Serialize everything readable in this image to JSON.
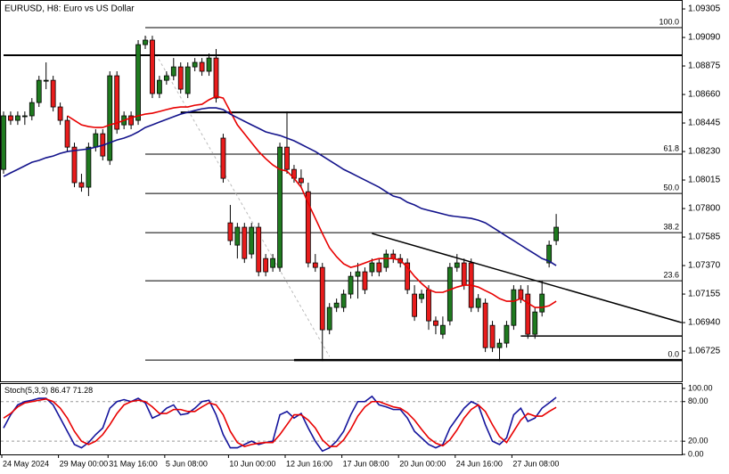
{
  "chart_data": [
    {
      "type": "candlestick",
      "title": "EURUSD, H8:  Euro vs US Dollar",
      "categories": [
        "24 May 2024",
        null,
        null,
        null,
        null,
        null,
        null,
        null,
        "29 May 00:00",
        null,
        null,
        null,
        null,
        null,
        null,
        "31 May 16:00",
        null,
        null,
        null,
        null,
        null,
        null,
        null,
        "5 Jun 08:00",
        null,
        null,
        null,
        null,
        null,
        null,
        null,
        null,
        "10 Jun 00:00",
        null,
        null,
        null,
        null,
        null,
        null,
        null,
        "12 Jun 16:00",
        null,
        null,
        null,
        null,
        null,
        null,
        null,
        "17 Jun 08:00",
        null,
        null,
        null,
        null,
        null,
        null,
        null,
        "20 Jun 00:00",
        null,
        null,
        null,
        null,
        null,
        null,
        null,
        "24 Jun 16:00",
        null,
        null,
        null,
        null,
        null,
        null,
        null,
        "27 Jun 08:00",
        null,
        null,
        null,
        null,
        null,
        null
      ],
      "open": [
        1.08095,
        1.08499,
        1.08465,
        1.08499,
        1.08499,
        1.08599,
        1.08767,
        1.08767,
        1.08566,
        1.08465,
        1.08263,
        1.07995,
        1.07961,
        1.08263,
        1.08364,
        1.08163,
        1.08801,
        1.08431,
        1.08499,
        1.08465,
        1.09036,
        1.0907,
        1.08667,
        1.08767,
        1.08801,
        1.08868,
        1.08667,
        1.08868,
        1.08902,
        1.08835,
        1.08935,
        1.08331,
        1.07692,
        1.07524,
        1.07659,
        1.07457,
        1.07659,
        1.07423,
        1.07356,
        1.07356,
        1.08263,
        1.08095,
        1.08028,
        1.07927,
        1.0739,
        1.07356,
        1.06886,
        1.07054,
        1.07054,
        1.07155,
        1.07289,
        1.07323,
        1.07323,
        1.0739,
        1.07356,
        1.07457,
        1.07423,
        1.0739,
        1.07155,
        1.07121,
        1.07188,
        1.06953,
        1.06852,
        1.06953,
        1.07356,
        1.0739,
        1.0739,
        1.07054,
        1.07087,
        1.06919,
        1.06751,
        1.06785,
        1.06919,
        1.07188,
        1.07155,
        1.06852,
        1.0702,
        1.0739,
        1.07558
      ],
      "high": [
        1.08532,
        1.08532,
        1.08532,
        1.08532,
        1.08633,
        1.08801,
        1.08902,
        1.08801,
        1.08599,
        1.08499,
        1.08297,
        1.08062,
        1.08297,
        1.08398,
        1.08398,
        1.08835,
        1.08835,
        1.08532,
        1.08532,
        1.0907,
        1.09103,
        1.09103,
        1.08801,
        1.08835,
        1.08935,
        1.08902,
        1.08902,
        1.08935,
        1.08935,
        1.08969,
        1.09003,
        1.08364,
        1.07827,
        1.07692,
        1.07692,
        1.07692,
        1.07692,
        1.07457,
        1.07457,
        1.08297,
        1.08532,
        1.08129,
        1.08095,
        1.07995,
        1.07457,
        1.0739,
        1.07087,
        1.07121,
        1.07188,
        1.07323,
        1.0739,
        1.07356,
        1.07423,
        1.07423,
        1.0749,
        1.0749,
        1.07457,
        1.07423,
        1.07222,
        1.07188,
        1.07222,
        1.06986,
        1.06986,
        1.0739,
        1.07457,
        1.07423,
        1.07423,
        1.07155,
        1.07121,
        1.06953,
        1.06818,
        1.06953,
        1.07222,
        1.07222,
        1.07222,
        1.07054,
        1.07255,
        1.07558,
        1.07759
      ],
      "low": [
        1.08062,
        1.08431,
        1.08431,
        1.08431,
        1.08465,
        1.08566,
        1.087,
        1.08532,
        1.08431,
        1.0823,
        1.07961,
        1.07927,
        1.07894,
        1.0823,
        1.08163,
        1.08129,
        1.08364,
        1.08398,
        1.08398,
        1.08431,
        1.09003,
        1.08633,
        1.08633,
        1.08734,
        1.08767,
        1.08667,
        1.08633,
        1.08835,
        1.08801,
        1.08801,
        1.08599,
        1.07995,
        1.07524,
        1.07423,
        1.0739,
        1.07423,
        1.07289,
        1.07289,
        1.07323,
        1.07323,
        1.08062,
        1.07995,
        1.07961,
        1.07356,
        1.07323,
        1.0665,
        1.06852,
        1.0702,
        1.0702,
        1.07121,
        1.07121,
        1.07155,
        1.07289,
        1.07289,
        1.07323,
        1.0739,
        1.07356,
        1.07155,
        1.06953,
        1.07087,
        1.06886,
        1.06852,
        1.06818,
        1.06919,
        1.07323,
        1.07188,
        1.0702,
        1.0702,
        1.06718,
        1.06718,
        1.0665,
        1.06751,
        1.06886,
        1.07087,
        1.06818,
        1.06818,
        1.06986,
        1.07356,
        1.07524
      ],
      "close": [
        1.08499,
        1.08465,
        1.08499,
        1.08499,
        1.08599,
        1.08767,
        1.08767,
        1.08566,
        1.08465,
        1.08263,
        1.07995,
        1.07961,
        1.08263,
        1.08364,
        1.08196,
        1.08801,
        1.08398,
        1.08499,
        1.08431,
        1.09036,
        1.0907,
        1.08667,
        1.08767,
        1.08801,
        1.08868,
        1.087,
        1.08868,
        1.08902,
        1.08835,
        1.08935,
        1.08633,
        1.08028,
        1.07558,
        1.07659,
        1.07423,
        1.07659,
        1.07323,
        1.07323,
        1.07423,
        1.08263,
        1.08095,
        1.08028,
        1.07995,
        1.0739,
        1.07356,
        1.06886,
        1.07054,
        1.07087,
        1.07155,
        1.07289,
        1.07323,
        1.07188,
        1.0739,
        1.07323,
        1.07457,
        1.07423,
        1.0739,
        1.07188,
        1.06986,
        1.07155,
        1.06953,
        1.06919,
        1.06919,
        1.07356,
        1.0739,
        1.07222,
        1.07054,
        1.07121,
        1.06751,
        1.06751,
        1.06785,
        1.06919,
        1.07188,
        1.07121,
        1.06852,
        1.0702,
        1.07155,
        1.07524,
        1.07659
      ],
      "up_color": "#1f7a1f",
      "down_color": "#e81c1c",
      "series": [
        {
          "color": "#e80000",
          "values": [
            null,
            null,
            null,
            null,
            null,
            null,
            null,
            null,
            null,
            1.08499,
            1.08465,
            1.08431,
            1.08418,
            1.08411,
            1.08411,
            1.08431,
            1.08445,
            1.08465,
            1.08485,
            1.08499,
            1.08512,
            1.08519,
            1.08532,
            1.08546,
            1.08559,
            1.08566,
            1.08566,
            1.08579,
            1.08586,
            1.0862,
            1.08646,
            1.08633,
            1.08532,
            1.08431,
            1.08364,
            1.08297,
            1.0823,
            1.08176,
            1.08129,
            1.08095,
            1.08082,
            1.08028,
            1.07961,
            1.0784,
            1.07726,
            1.07612,
            1.07504,
            1.07437,
            1.07383,
            1.07356,
            1.0737,
            1.0739,
            1.0741,
            1.07423,
            1.07423,
            1.07423,
            1.0741,
            1.07356,
            1.07289,
            1.07235,
            1.07188,
            1.07168,
            1.07168,
            1.07188,
            1.07208,
            1.07222,
            1.07222,
            1.07208,
            1.07181,
            1.07155,
            1.07121,
            1.07101,
            1.07101,
            1.07121,
            1.07087,
            1.07054,
            1.07054,
            1.07067,
            1.07101
          ]
        },
        {
          "color": "#14148c",
          "values": [
            1.08042,
            1.08069,
            1.08095,
            1.08122,
            1.08149,
            1.08163,
            1.08183,
            1.08196,
            1.08216,
            1.0823,
            1.08237,
            1.08243,
            1.0825,
            1.08263,
            1.08277,
            1.08297,
            1.08317,
            1.08331,
            1.08351,
            1.08378,
            1.08411,
            1.08431,
            1.08452,
            1.08472,
            1.08492,
            1.08512,
            1.08526,
            1.08539,
            1.08552,
            1.08559,
            1.08559,
            1.08546,
            1.08512,
            1.08485,
            1.08458,
            1.08431,
            1.08405,
            1.08378,
            1.08364,
            1.08351,
            1.08331,
            1.08311,
            1.08284,
            1.08257,
            1.0823,
            1.08196,
            1.08163,
            1.08129,
            1.08095,
            1.08069,
            1.08042,
            1.08015,
            1.07988,
            1.07961,
            1.07927,
            1.07894,
            1.0788,
            1.07847,
            1.07827,
            1.078,
            1.07786,
            1.07773,
            1.07759,
            1.07746,
            1.07739,
            1.07733,
            1.07726,
            1.07712,
            1.07692,
            1.07659,
            1.07625,
            1.07591,
            1.07558,
            1.07524,
            1.0749,
            1.07457,
            1.07423,
            1.07403,
            1.0737
          ]
        }
      ],
      "ylim": [
        1.06497,
        1.09359
      ],
      "yticks": [
        1.09305,
        {
          "value": 1.0909,
          "label": "1.09090"
        },
        1.08875,
        {
          "value": 1.0866,
          "label": "1.08660"
        },
        1.08445,
        {
          "value": 1.0823,
          "label": "1.08230"
        },
        1.08015,
        {
          "value": 1.078,
          "label": "1.07800"
        },
        1.07585,
        {
          "value": 1.0737,
          "label": "1.07370"
        },
        1.07155,
        {
          "value": 1.0694,
          "label": "1.06940"
        },
        1.06725
      ],
      "fib_start": 20,
      "fib_levels": [
        {
          "label": "100.0",
          "value": 1.09164
        },
        {
          "label": "61.8",
          "value": 1.0821
        },
        {
          "label": "50.0",
          "value": 1.07914
        },
        {
          "label": "38.2",
          "value": 1.07618
        },
        {
          "label": "23.6",
          "value": 1.07255
        },
        {
          "label": "0.0",
          "value": 1.06657
        }
      ],
      "fib_diagonal": {
        "x": [
          20,
          46
        ],
        "y": [
          1.09103,
          1.06684
        ]
      },
      "hlines": [
        {
          "value": 1.08956,
          "start": 0,
          "width": 2
        },
        {
          "value": 1.08525,
          "start": 25,
          "width": 2
        },
        {
          "value": 1.06657,
          "start": 41,
          "width": 2.5
        },
        {
          "value": 1.06839,
          "start": 73,
          "width": 1.5
        }
      ],
      "trendline": {
        "x": [
          52,
          95.7
        ],
        "y": [
          1.07612,
          1.0694
        ]
      }
    },
    {
      "type": "line",
      "name": "Stoch(5,3,3)",
      "series": [
        {
          "color": "#14149c",
          "values": [
            40,
            60,
            75,
            80,
            82,
            85,
            85,
            75,
            55,
            35,
            15,
            10,
            18,
            30,
            40,
            70,
            80,
            83,
            80,
            85,
            78,
            55,
            60,
            70,
            75,
            60,
            62,
            70,
            80,
            82,
            60,
            30,
            10,
            10,
            15,
            20,
            15,
            18,
            20,
            60,
            65,
            55,
            62,
            40,
            20,
            5,
            10,
            20,
            35,
            60,
            80,
            80,
            88,
            75,
            72,
            68,
            68,
            55,
            35,
            25,
            15,
            10,
            15,
            40,
            55,
            70,
            80,
            75,
            45,
            20,
            15,
            25,
            60,
            70,
            50,
            55,
            70,
            78,
            86.47
          ]
        },
        {
          "color": "#e80000",
          "values": [
            55,
            62,
            72,
            78,
            80,
            82,
            84,
            80,
            70,
            55,
            35,
            20,
            15,
            20,
            30,
            45,
            62,
            75,
            80,
            82,
            80,
            72,
            62,
            62,
            68,
            68,
            65,
            65,
            72,
            78,
            75,
            60,
            35,
            18,
            12,
            15,
            17,
            18,
            18,
            30,
            45,
            60,
            60,
            52,
            40,
            22,
            12,
            12,
            22,
            38,
            58,
            72,
            80,
            80,
            76,
            72,
            70,
            63,
            52,
            38,
            25,
            17,
            13,
            22,
            37,
            55,
            68,
            75,
            65,
            45,
            27,
            18,
            35,
            52,
            62,
            58,
            58,
            65,
            71.28
          ]
        }
      ],
      "ylim": [
        0,
        108
      ],
      "yticks": [
        {
          "value": 100,
          "label": "100.00"
        },
        {
          "value": 80,
          "label": "80.00"
        },
        {
          "value": 20,
          "label": "20.00"
        },
        {
          "value": 0,
          "label": "0.00"
        }
      ],
      "levels": [
        80,
        20
      ]
    }
  ]
}
